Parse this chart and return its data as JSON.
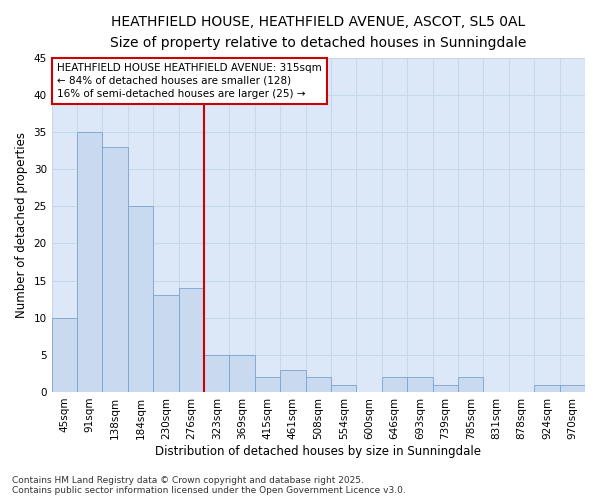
{
  "title1": "HEATHFIELD HOUSE, HEATHFIELD AVENUE, ASCOT, SL5 0AL",
  "title2": "Size of property relative to detached houses in Sunningdale",
  "xlabel": "Distribution of detached houses by size in Sunningdale",
  "ylabel": "Number of detached properties",
  "categories": [
    "45sqm",
    "91sqm",
    "138sqm",
    "184sqm",
    "230sqm",
    "276sqm",
    "323sqm",
    "369sqm",
    "415sqm",
    "461sqm",
    "508sqm",
    "554sqm",
    "600sqm",
    "646sqm",
    "693sqm",
    "739sqm",
    "785sqm",
    "831sqm",
    "878sqm",
    "924sqm",
    "970sqm"
  ],
  "values": [
    10,
    35,
    33,
    25,
    13,
    14,
    5,
    5,
    2,
    3,
    2,
    1,
    0,
    2,
    2,
    1,
    2,
    0,
    0,
    1,
    1
  ],
  "bar_color": "#c9d9f0",
  "bar_edge_color": "#7ba3cc",
  "red_line_index": 6,
  "annotation_line1": "HEATHFIELD HOUSE HEATHFIELD AVENUE: 315sqm",
  "annotation_line2": "← 84% of detached houses are smaller (128)",
  "annotation_line3": "16% of semi-detached houses are larger (25) →",
  "annotation_box_color": "#ffffff",
  "annotation_box_edge": "#cc0000",
  "ylim": [
    0,
    45
  ],
  "yticks": [
    0,
    5,
    10,
    15,
    20,
    25,
    30,
    35,
    40,
    45
  ],
  "footer": "Contains HM Land Registry data © Crown copyright and database right 2025.\nContains public sector information licensed under the Open Government Licence v3.0.",
  "background_color": "#ffffff",
  "plot_bg_color": "#dce8f8",
  "grid_color": "#c8d8ec",
  "title1_fontsize": 10,
  "title2_fontsize": 9,
  "axis_label_fontsize": 8.5,
  "tick_fontsize": 7.5,
  "annotation_fontsize": 7.5,
  "footer_fontsize": 6.5
}
